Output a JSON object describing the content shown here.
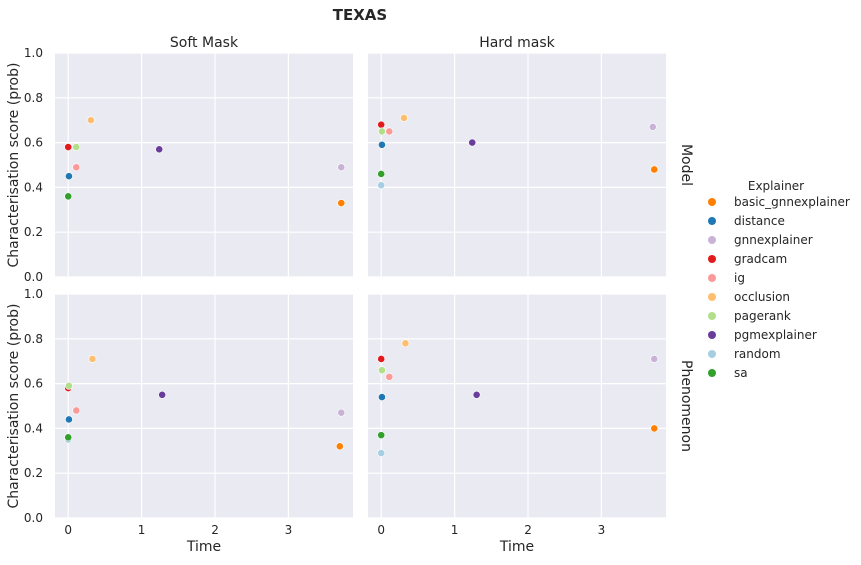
{
  "suptitle": "TEXAS",
  "chart_data": {
    "type": "scatter",
    "xlabel": "Time",
    "ylabel": "Characterisation score (prob)",
    "xlim": [
      -0.18,
      3.88
    ],
    "ylim": [
      0,
      1
    ],
    "xticks": [
      0,
      1,
      2,
      3
    ],
    "yticks": [
      0.0,
      0.2,
      0.4,
      0.6,
      0.8,
      1.0
    ],
    "xtick_labels": [
      "0",
      "1",
      "2",
      "3"
    ],
    "ytick_labels": [
      "0.0",
      "0.2",
      "0.4",
      "0.6",
      "0.8",
      "1.0"
    ],
    "grid": true,
    "columns": [
      "Soft Mask",
      "Hard mask"
    ],
    "rows": [
      "Model",
      "Phenomenon"
    ],
    "legend": {
      "title": "Explainer",
      "placement": "right",
      "entries": [
        {
          "name": "basic_gnnexplainer",
          "color": "#ff7f00"
        },
        {
          "name": "distance",
          "color": "#1f78b4"
        },
        {
          "name": "gnnexplainer",
          "color": "#cab2d6"
        },
        {
          "name": "gradcam",
          "color": "#e31a1c"
        },
        {
          "name": "ig",
          "color": "#fb9a99"
        },
        {
          "name": "occlusion",
          "color": "#fdbf6f"
        },
        {
          "name": "pagerank",
          "color": "#b2df8a"
        },
        {
          "name": "pgmexplainer",
          "color": "#6a3d9a"
        },
        {
          "name": "random",
          "color": "#a6cee3"
        },
        {
          "name": "sa",
          "color": "#33a02c"
        }
      ]
    },
    "panels": [
      {
        "row": "Model",
        "column": "Soft Mask",
        "points": [
          {
            "series": "basic_gnnexplainer",
            "x": 3.72,
            "y": 0.33
          },
          {
            "series": "distance",
            "x": 0.01,
            "y": 0.45
          },
          {
            "series": "gnnexplainer",
            "x": 3.72,
            "y": 0.49
          },
          {
            "series": "gradcam",
            "x": 0.0,
            "y": 0.58
          },
          {
            "series": "ig",
            "x": 0.11,
            "y": 0.49
          },
          {
            "series": "occlusion",
            "x": 0.31,
            "y": 0.7
          },
          {
            "series": "pagerank",
            "x": 0.11,
            "y": 0.58
          },
          {
            "series": "pgmexplainer",
            "x": 1.24,
            "y": 0.57
          },
          {
            "series": "random",
            "x": 0.0,
            "y": 0.36
          },
          {
            "series": "sa",
            "x": 0.0,
            "y": 0.36
          }
        ]
      },
      {
        "row": "Model",
        "column": "Hard mask",
        "points": [
          {
            "series": "basic_gnnexplainer",
            "x": 3.72,
            "y": 0.48
          },
          {
            "series": "distance",
            "x": 0.01,
            "y": 0.59
          },
          {
            "series": "gnnexplainer",
            "x": 3.7,
            "y": 0.67
          },
          {
            "series": "gradcam",
            "x": 0.0,
            "y": 0.68
          },
          {
            "series": "ig",
            "x": 0.11,
            "y": 0.65
          },
          {
            "series": "occlusion",
            "x": 0.31,
            "y": 0.71
          },
          {
            "series": "pagerank",
            "x": 0.01,
            "y": 0.65
          },
          {
            "series": "pgmexplainer",
            "x": 1.24,
            "y": 0.6
          },
          {
            "series": "random",
            "x": 0.0,
            "y": 0.41
          },
          {
            "series": "sa",
            "x": 0.0,
            "y": 0.46
          }
        ]
      },
      {
        "row": "Phenomenon",
        "column": "Soft Mask",
        "points": [
          {
            "series": "basic_gnnexplainer",
            "x": 3.7,
            "y": 0.32
          },
          {
            "series": "distance",
            "x": 0.01,
            "y": 0.44
          },
          {
            "series": "gnnexplainer",
            "x": 3.72,
            "y": 0.47
          },
          {
            "series": "gradcam",
            "x": 0.0,
            "y": 0.58
          },
          {
            "series": "ig",
            "x": 0.11,
            "y": 0.48
          },
          {
            "series": "occlusion",
            "x": 0.33,
            "y": 0.71
          },
          {
            "series": "pagerank",
            "x": 0.01,
            "y": 0.59
          },
          {
            "series": "pgmexplainer",
            "x": 1.28,
            "y": 0.55
          },
          {
            "series": "random",
            "x": 0.0,
            "y": 0.35
          },
          {
            "series": "sa",
            "x": 0.0,
            "y": 0.36
          }
        ]
      },
      {
        "row": "Phenomenon",
        "column": "Hard mask",
        "points": [
          {
            "series": "basic_gnnexplainer",
            "x": 3.72,
            "y": 0.4
          },
          {
            "series": "distance",
            "x": 0.01,
            "y": 0.54
          },
          {
            "series": "gnnexplainer",
            "x": 3.72,
            "y": 0.71
          },
          {
            "series": "gradcam",
            "x": 0.0,
            "y": 0.71
          },
          {
            "series": "ig",
            "x": 0.11,
            "y": 0.63
          },
          {
            "series": "occlusion",
            "x": 0.33,
            "y": 0.78
          },
          {
            "series": "pagerank",
            "x": 0.01,
            "y": 0.66
          },
          {
            "series": "pgmexplainer",
            "x": 1.3,
            "y": 0.55
          },
          {
            "series": "random",
            "x": 0.0,
            "y": 0.29
          },
          {
            "series": "sa",
            "x": 0.0,
            "y": 0.37
          }
        ]
      }
    ]
  }
}
